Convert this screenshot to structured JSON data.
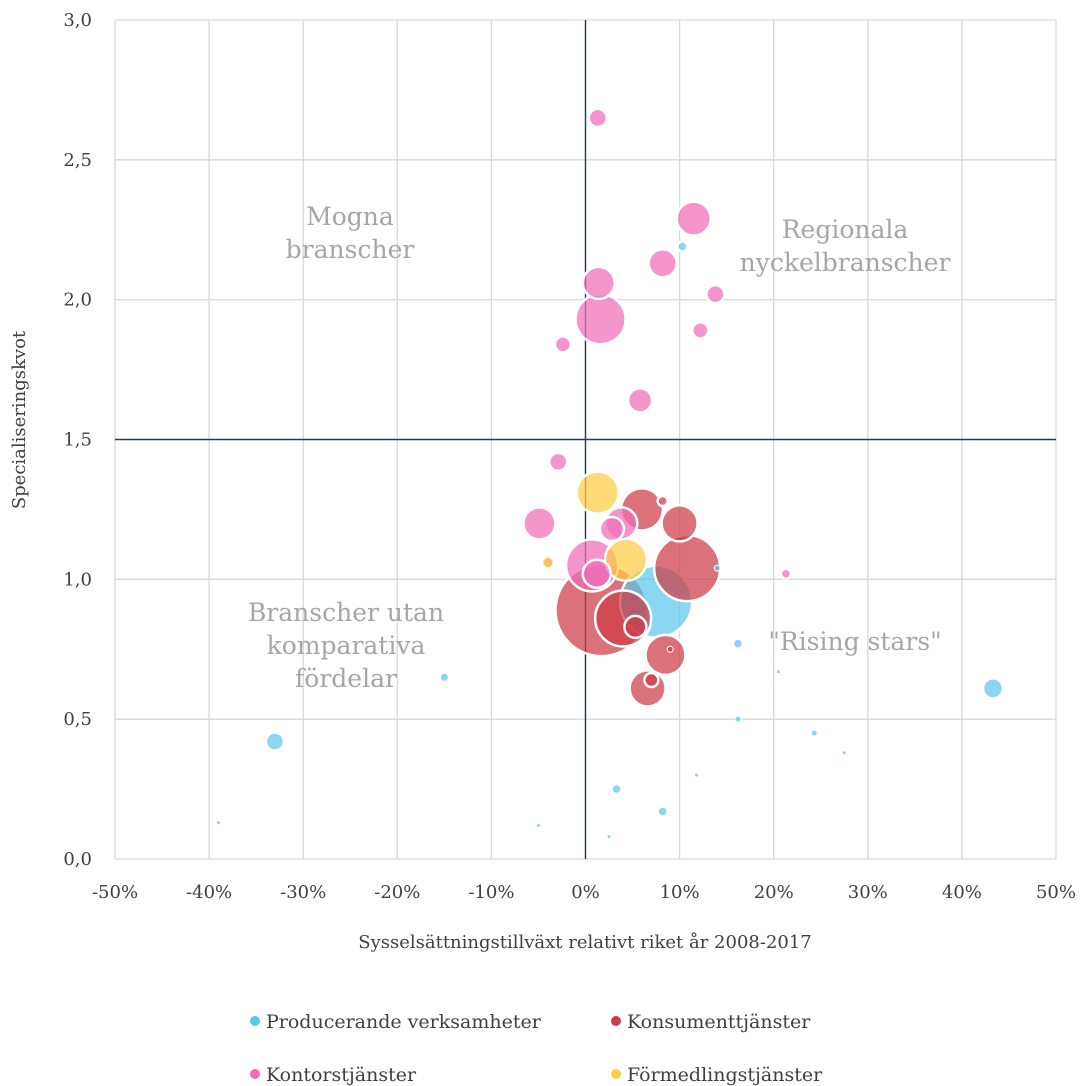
{
  "chart_data": {
    "type": "scatter",
    "title": "",
    "xlabel": "Sysselsättningstillväxt relativt riket år 2008-2017",
    "ylabel": "Specialiseringskvot",
    "xlim": [
      -0.5,
      0.5
    ],
    "ylim": [
      0.0,
      3.0
    ],
    "x_ticks": [
      "-50%",
      "-40%",
      "-30%",
      "-20%",
      "-10%",
      "0%",
      "10%",
      "20%",
      "30%",
      "40%",
      "50%"
    ],
    "y_ticks": [
      "0,0",
      "0,5",
      "1,0",
      "1,5",
      "2,0",
      "2,5",
      "3,0"
    ],
    "reference_lines": {
      "x": 0.0,
      "y": 1.5
    },
    "grid": true,
    "legend_position": "bottom",
    "quadrant_labels": [
      {
        "key": "top-left",
        "lines": [
          "Mogna",
          "branscher"
        ]
      },
      {
        "key": "top-right",
        "lines": [
          "Regionala",
          "nyckelbranscher"
        ]
      },
      {
        "key": "bottom-left",
        "lines": [
          "Branscher utan",
          "komparativa",
          "fördelar"
        ]
      },
      {
        "key": "bottom-right",
        "lines": [
          "\"Rising stars\""
        ]
      }
    ],
    "series": [
      {
        "name": "Producerande verksamheter",
        "color": "#5bc8ea",
        "points": [
          {
            "x": -0.33,
            "y": 0.42,
            "size": 9
          },
          {
            "x": -0.15,
            "y": 0.65,
            "size": 4
          },
          {
            "x": -0.39,
            "y": 0.13,
            "size": 2
          },
          {
            "x": -0.05,
            "y": 0.12,
            "size": 2
          },
          {
            "x": 0.025,
            "y": 0.08,
            "size": 2
          },
          {
            "x": 0.033,
            "y": 0.25,
            "size": 5
          },
          {
            "x": 0.082,
            "y": 0.17,
            "size": 5
          },
          {
            "x": 0.118,
            "y": 0.3,
            "size": 2
          },
          {
            "x": 0.103,
            "y": 2.19,
            "size": 5
          },
          {
            "x": 0.14,
            "y": 1.04,
            "size": 3
          },
          {
            "x": 0.162,
            "y": 0.77,
            "size": 5
          },
          {
            "x": 0.162,
            "y": 0.5,
            "size": 3
          },
          {
            "x": 0.205,
            "y": 0.67,
            "size": 2
          },
          {
            "x": 0.243,
            "y": 0.45,
            "size": 3
          },
          {
            "x": 0.275,
            "y": 0.38,
            "size": 2
          },
          {
            "x": 0.433,
            "y": 0.61,
            "size": 10
          },
          {
            "x": 0.075,
            "y": 0.92,
            "size": 36
          }
        ]
      },
      {
        "name": "Konsumenttjänster",
        "color": "#cd3b47",
        "points": [
          {
            "x": 0.06,
            "y": 1.25,
            "size": 21
          },
          {
            "x": 0.1,
            "y": 1.2,
            "size": 18
          },
          {
            "x": 0.108,
            "y": 1.04,
            "size": 33
          },
          {
            "x": 0.017,
            "y": 0.89,
            "size": 46
          },
          {
            "x": 0.04,
            "y": 0.86,
            "size": 28
          },
          {
            "x": 0.053,
            "y": 0.83,
            "size": 11
          },
          {
            "x": 0.085,
            "y": 0.73,
            "size": 20
          },
          {
            "x": 0.066,
            "y": 0.61,
            "size": 18
          },
          {
            "x": 0.07,
            "y": 0.64,
            "size": 7
          },
          {
            "x": 0.09,
            "y": 0.75,
            "size": 3
          },
          {
            "x": 0.082,
            "y": 1.28,
            "size": 5
          }
        ]
      },
      {
        "name": "Kontorstjänster",
        "color": "#f06eb9",
        "points": [
          {
            "x": 0.013,
            "y": 2.65,
            "size": 9
          },
          {
            "x": 0.115,
            "y": 2.29,
            "size": 17
          },
          {
            "x": 0.082,
            "y": 2.13,
            "size": 14
          },
          {
            "x": 0.014,
            "y": 2.06,
            "size": 16
          },
          {
            "x": 0.138,
            "y": 2.02,
            "size": 9
          },
          {
            "x": 0.016,
            "y": 1.93,
            "size": 25
          },
          {
            "x": 0.122,
            "y": 1.89,
            "size": 8
          },
          {
            "x": -0.024,
            "y": 1.84,
            "size": 8
          },
          {
            "x": 0.058,
            "y": 1.64,
            "size": 12
          },
          {
            "x": -0.029,
            "y": 1.42,
            "size": 9
          },
          {
            "x": -0.049,
            "y": 1.2,
            "size": 16
          },
          {
            "x": 0.038,
            "y": 1.2,
            "size": 16
          },
          {
            "x": 0.028,
            "y": 1.18,
            "size": 12
          },
          {
            "x": 0.007,
            "y": 1.05,
            "size": 26
          },
          {
            "x": 0.012,
            "y": 1.02,
            "size": 14
          },
          {
            "x": -0.039,
            "y": 1.06,
            "size": 6
          },
          {
            "x": 0.213,
            "y": 1.02,
            "size": 5
          }
        ]
      },
      {
        "name": "Förmedlingstjänster",
        "color": "#ffcc44",
        "points": [
          {
            "x": 0.013,
            "y": 1.31,
            "size": 21
          },
          {
            "x": 0.043,
            "y": 1.07,
            "size": 21
          },
          {
            "x": -0.04,
            "y": 1.06,
            "size": 6
          }
        ]
      }
    ]
  }
}
